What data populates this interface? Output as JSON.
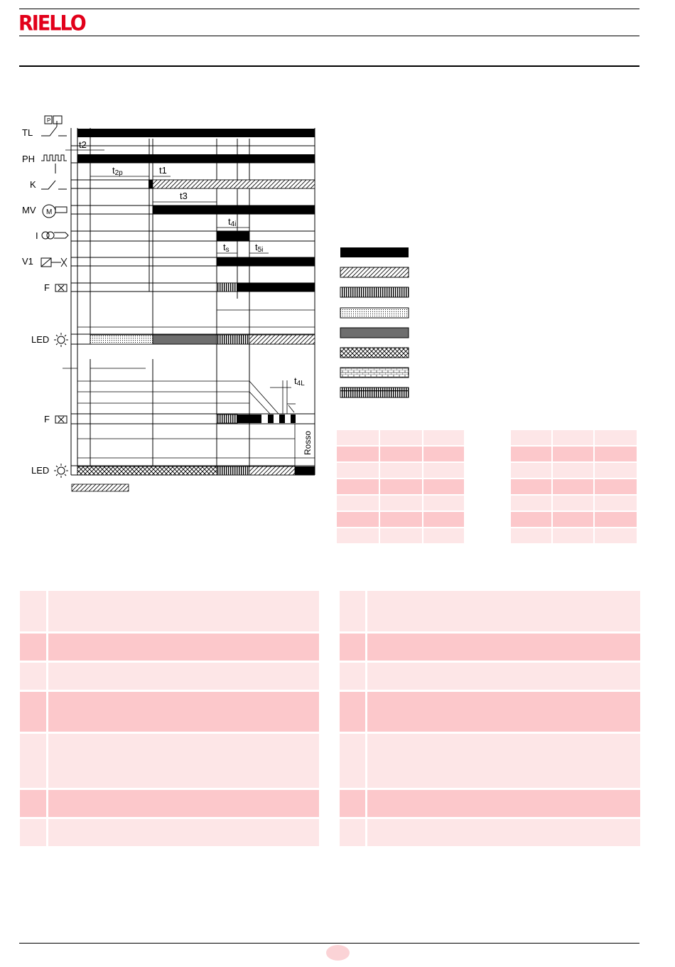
{
  "header": {
    "brand": "RIELLO"
  },
  "timing_diagram": {
    "signals": [
      "TL",
      "PH",
      "K",
      "MV",
      "I",
      "V1",
      "F",
      "LED",
      "F",
      "LED"
    ],
    "time_labels": {
      "t2": "t2",
      "t2p_base": "t",
      "t2p_sub": "2p",
      "t1": "t1",
      "t3": "t3",
      "t4i_base": "t",
      "t4i_sub": "4i",
      "ts_base": "t",
      "ts_sub": "s",
      "t5i_base": "t",
      "t5i_sub": "5i",
      "t4L_base": "t",
      "t4L_sub": "4L"
    },
    "switch_symbol_letters": "P",
    "motor_symbol": "M",
    "red_label": "Rosso"
  },
  "legend": {
    "patterns": [
      "solid-black",
      "diagonal-hatch",
      "vertical-stripes",
      "dotted",
      "solid-gray",
      "cross-hatch",
      "brick",
      "ladder-stripes"
    ]
  },
  "colors": {
    "brand_red": "#e2001a",
    "row_dark": "#fcc8cb",
    "row_light": "#fde6e7",
    "page_badge": "#fbd3d6"
  }
}
